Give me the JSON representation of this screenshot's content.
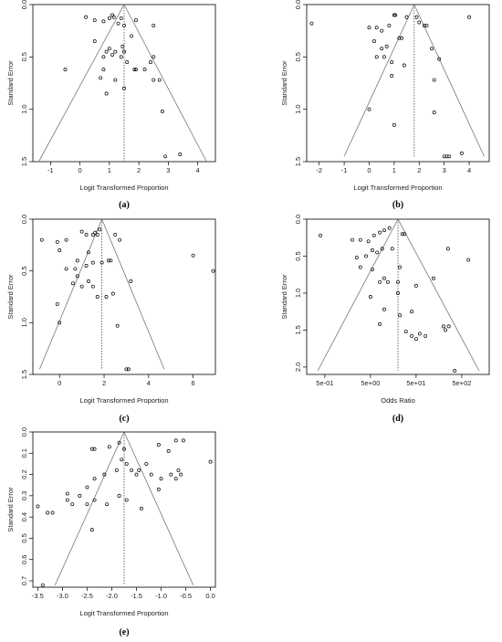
{
  "figure": {
    "panels": [
      {
        "name": "a",
        "label": "(a)"
      },
      {
        "name": "b",
        "label": "(b)"
      },
      {
        "name": "c",
        "label": "(c)"
      },
      {
        "name": "d",
        "label": "(d)"
      },
      {
        "name": "e",
        "label": "(e)"
      }
    ],
    "colors": {
      "points": "#000000",
      "funnel": "#777777",
      "frame": "#000000",
      "background": "#ffffff"
    }
  },
  "chart_data": [
    {
      "type": "scatter",
      "panel": "(a)",
      "xlabel": "Logit Transformed Proportion",
      "ylabel": "Standard Error",
      "xlim": [
        -1.6,
        4.6
      ],
      "ylim": [
        1.5,
        0.0
      ],
      "y_reversed": true,
      "xticks": [
        -1,
        0,
        1,
        2,
        3,
        4
      ],
      "xtick_labels": [
        "-1",
        "0",
        "1",
        "2",
        "3",
        "4"
      ],
      "yticks": [
        0.0,
        0.5,
        1.0,
        1.5
      ],
      "ytick_labels": [
        "0.0",
        "0.5",
        "1.0",
        "1.5"
      ],
      "pooled_estimate": 1.5,
      "funnel": {
        "apex_se": 0.0,
        "base_se": 1.5,
        "left": -1.4,
        "right": 4.3
      },
      "points": [
        [
          0.2,
          0.12
        ],
        [
          0.5,
          0.15
        ],
        [
          0.8,
          0.16
        ],
        [
          1.0,
          0.13
        ],
        [
          1.1,
          0.1
        ],
        [
          1.15,
          0.12
        ],
        [
          1.3,
          0.18
        ],
        [
          1.4,
          0.13
        ],
        [
          1.5,
          0.2
        ],
        [
          1.9,
          0.15
        ],
        [
          2.5,
          0.2
        ],
        [
          0.5,
          0.35
        ],
        [
          1.45,
          0.4
        ],
        [
          1.5,
          0.45
        ],
        [
          1.0,
          0.42
        ],
        [
          0.9,
          0.45
        ],
        [
          1.2,
          0.45
        ],
        [
          0.8,
          0.5
        ],
        [
          1.1,
          0.48
        ],
        [
          1.4,
          0.5
        ],
        [
          1.6,
          0.55
        ],
        [
          1.75,
          0.3
        ],
        [
          1.85,
          0.62
        ],
        [
          1.9,
          0.62
        ],
        [
          2.2,
          0.62
        ],
        [
          2.4,
          0.55
        ],
        [
          2.5,
          0.5
        ],
        [
          -0.5,
          0.62
        ],
        [
          0.8,
          0.62
        ],
        [
          0.7,
          0.7
        ],
        [
          1.2,
          0.72
        ],
        [
          2.5,
          0.72
        ],
        [
          2.7,
          0.72
        ],
        [
          0.9,
          0.85
        ],
        [
          1.5,
          0.8
        ],
        [
          2.8,
          1.02
        ],
        [
          2.9,
          1.45
        ],
        [
          3.4,
          1.43
        ]
      ]
    },
    {
      "type": "scatter",
      "panel": "(b)",
      "xlabel": "Logit Transformed Proportion",
      "ylabel": "Standard Error",
      "xlim": [
        -2.5,
        4.8
      ],
      "ylim": [
        1.5,
        0.0
      ],
      "y_reversed": true,
      "xticks": [
        -2,
        -1,
        0,
        1,
        2,
        3,
        4
      ],
      "xtick_labels": [
        "-2",
        "-1",
        "0",
        "1",
        "2",
        "3",
        "4"
      ],
      "yticks": [
        0.0,
        0.5,
        1.0,
        1.5
      ],
      "ytick_labels": [
        "0.0",
        "0.5",
        "1.0",
        "1.5"
      ],
      "pooled_estimate": 1.8,
      "funnel": {
        "apex_se": 0.0,
        "base_se": 1.45,
        "left": -1.0,
        "right": 4.6
      },
      "points": [
        [
          -2.3,
          0.18
        ],
        [
          0.0,
          0.22
        ],
        [
          0.3,
          0.22
        ],
        [
          0.5,
          0.25
        ],
        [
          0.8,
          0.2
        ],
        [
          1.0,
          0.1
        ],
        [
          1.05,
          0.1
        ],
        [
          1.5,
          0.12
        ],
        [
          1.9,
          0.12
        ],
        [
          2.0,
          0.17
        ],
        [
          2.3,
          0.2
        ],
        [
          2.2,
          0.2
        ],
        [
          4.0,
          0.12
        ],
        [
          0.2,
          0.35
        ],
        [
          0.5,
          0.42
        ],
        [
          0.7,
          0.4
        ],
        [
          1.2,
          0.32
        ],
        [
          1.3,
          0.32
        ],
        [
          0.3,
          0.5
        ],
        [
          0.6,
          0.5
        ],
        [
          0.9,
          0.55
        ],
        [
          1.4,
          0.58
        ],
        [
          2.5,
          0.42
        ],
        [
          2.8,
          0.52
        ],
        [
          0.9,
          0.68
        ],
        [
          2.6,
          0.72
        ],
        [
          0.0,
          1.0
        ],
        [
          2.6,
          1.03
        ],
        [
          1.0,
          1.15
        ],
        [
          3.0,
          1.45
        ],
        [
          3.1,
          1.45
        ],
        [
          3.2,
          1.45
        ],
        [
          3.7,
          1.42
        ]
      ]
    },
    {
      "type": "scatter",
      "panel": "(c)",
      "xlabel": "Logit Transformed Proportion",
      "ylabel": "Standard Error",
      "xlim": [
        -1.2,
        7.0
      ],
      "ylim": [
        1.5,
        0.0
      ],
      "y_reversed": true,
      "xticks": [
        0,
        2,
        4,
        6
      ],
      "xtick_labels": [
        "0",
        "2",
        "4",
        "6"
      ],
      "yticks": [
        0.0,
        0.5,
        1.0,
        1.5
      ],
      "ytick_labels": [
        "0.0",
        "0.5",
        "1.0",
        "1.5"
      ],
      "pooled_estimate": 1.9,
      "funnel": {
        "apex_se": 0.0,
        "base_se": 1.45,
        "left": -0.9,
        "right": 4.7
      },
      "points": [
        [
          -0.8,
          0.2
        ],
        [
          -0.1,
          0.22
        ],
        [
          0.3,
          0.2
        ],
        [
          1.0,
          0.12
        ],
        [
          1.2,
          0.15
        ],
        [
          1.5,
          0.15
        ],
        [
          1.6,
          0.13
        ],
        [
          1.7,
          0.15
        ],
        [
          1.8,
          0.1
        ],
        [
          2.5,
          0.15
        ],
        [
          2.7,
          0.2
        ],
        [
          0.0,
          0.3
        ],
        [
          1.3,
          0.32
        ],
        [
          0.8,
          0.4
        ],
        [
          0.3,
          0.48
        ],
        [
          0.7,
          0.48
        ],
        [
          1.2,
          0.45
        ],
        [
          1.5,
          0.42
        ],
        [
          1.9,
          0.42
        ],
        [
          2.2,
          0.4
        ],
        [
          2.3,
          0.4
        ],
        [
          6.0,
          0.35
        ],
        [
          6.9,
          0.5
        ],
        [
          0.8,
          0.55
        ],
        [
          1.3,
          0.6
        ],
        [
          0.6,
          0.62
        ],
        [
          1.0,
          0.65
        ],
        [
          1.5,
          0.65
        ],
        [
          3.2,
          0.6
        ],
        [
          1.7,
          0.75
        ],
        [
          2.1,
          0.75
        ],
        [
          2.4,
          0.72
        ],
        [
          -0.1,
          0.82
        ],
        [
          0.0,
          1.0
        ],
        [
          2.6,
          1.03
        ],
        [
          3.0,
          1.45
        ],
        [
          3.1,
          1.45
        ]
      ]
    },
    {
      "type": "scatter",
      "panel": "(d)",
      "xlabel": "Odds Ratio",
      "ylabel": "Standard Error",
      "x_scale": "log",
      "xlim": [
        0.2,
        2000
      ],
      "ylim": [
        2.1,
        0.0
      ],
      "y_reversed": true,
      "xticks": [
        0.5,
        5,
        50,
        500
      ],
      "xtick_labels": [
        "5e-01",
        "5e+00",
        "5e+01",
        "5e+02"
      ],
      "yticks": [
        0.0,
        0.5,
        1.0,
        1.5,
        2.0
      ],
      "ytick_labels": [
        "0.0",
        "0.5",
        "1.0",
        "1.5",
        "2.0"
      ],
      "pooled_estimate": 20,
      "funnel": {
        "apex_se": 0.0,
        "base_se": 2.05,
        "left": 0.35,
        "right": 1200
      },
      "points": [
        [
          0.4,
          0.22
        ],
        [
          2.0,
          0.28
        ],
        [
          3.0,
          0.28
        ],
        [
          4.5,
          0.3
        ],
        [
          6.0,
          0.22
        ],
        [
          8.0,
          0.18
        ],
        [
          10.0,
          0.15
        ],
        [
          13.0,
          0.12
        ],
        [
          25.0,
          0.2
        ],
        [
          28.0,
          0.2
        ],
        [
          2.5,
          0.52
        ],
        [
          4.0,
          0.5
        ],
        [
          5.5,
          0.42
        ],
        [
          7.0,
          0.45
        ],
        [
          9.0,
          0.4
        ],
        [
          15.0,
          0.4
        ],
        [
          250.0,
          0.4
        ],
        [
          700.0,
          0.55
        ],
        [
          3.0,
          0.65
        ],
        [
          5.5,
          0.68
        ],
        [
          22.0,
          0.65
        ],
        [
          8.0,
          0.85
        ],
        [
          10.0,
          0.8
        ],
        [
          12.0,
          0.85
        ],
        [
          20.0,
          0.85
        ],
        [
          50.0,
          0.9
        ],
        [
          120.0,
          0.8
        ],
        [
          20.0,
          1.0
        ],
        [
          5.0,
          1.05
        ],
        [
          10.0,
          1.22
        ],
        [
          40.0,
          1.25
        ],
        [
          22.0,
          1.3
        ],
        [
          8.0,
          1.42
        ],
        [
          30.0,
          1.52
        ],
        [
          40.0,
          1.58
        ],
        [
          50.0,
          1.62
        ],
        [
          60.0,
          1.55
        ],
        [
          80.0,
          1.58
        ],
        [
          200.0,
          1.45
        ],
        [
          220.0,
          1.5
        ],
        [
          260.0,
          1.45
        ],
        [
          350.0,
          2.05
        ]
      ]
    },
    {
      "type": "scatter",
      "panel": "(e)",
      "xlabel": "Logit Transformed Proportion",
      "ylabel": "Standard Error",
      "xlim": [
        -3.6,
        0.1
      ],
      "ylim": [
        0.73,
        0.0
      ],
      "y_reversed": true,
      "xticks": [
        -3.5,
        -3.0,
        -2.5,
        -2.0,
        -1.5,
        -1.0,
        -0.5,
        0.0
      ],
      "xtick_labels": [
        "-3.5",
        "-3.0",
        "-2.5",
        "-2.0",
        "-1.5",
        "-1.0",
        "-0.5",
        "0.0"
      ],
      "yticks": [
        0.0,
        0.1,
        0.2,
        0.3,
        0.4,
        0.5,
        0.6,
        0.7
      ],
      "ytick_labels": [
        "0.0",
        "0.1",
        "0.2",
        "0.3",
        "0.4",
        "0.5",
        "0.6",
        "0.7"
      ],
      "pooled_estimate": -1.75,
      "funnel": {
        "apex_se": 0.0,
        "base_se": 0.72,
        "left": -3.15,
        "right": -0.35
      },
      "points": [
        [
          -2.4,
          0.08
        ],
        [
          -2.35,
          0.08
        ],
        [
          -2.05,
          0.07
        ],
        [
          -1.85,
          0.05
        ],
        [
          -1.75,
          0.08
        ],
        [
          -0.7,
          0.04
        ],
        [
          -0.55,
          0.04
        ],
        [
          -1.05,
          0.06
        ],
        [
          -0.85,
          0.09
        ],
        [
          -1.8,
          0.13
        ],
        [
          -1.7,
          0.15
        ],
        [
          -1.6,
          0.18
        ],
        [
          -1.5,
          0.2
        ],
        [
          -1.45,
          0.18
        ],
        [
          -1.3,
          0.15
        ],
        [
          -1.2,
          0.2
        ],
        [
          -1.0,
          0.22
        ],
        [
          -0.8,
          0.2
        ],
        [
          -0.65,
          0.18
        ],
        [
          -0.6,
          0.2
        ],
        [
          -0.7,
          0.22
        ],
        [
          0.0,
          0.14
        ],
        [
          -1.9,
          0.18
        ],
        [
          -2.15,
          0.2
        ],
        [
          -2.35,
          0.22
        ],
        [
          -2.5,
          0.26
        ],
        [
          -2.9,
          0.29
        ],
        [
          -2.65,
          0.3
        ],
        [
          -2.9,
          0.32
        ],
        [
          -2.8,
          0.34
        ],
        [
          -2.5,
          0.34
        ],
        [
          -2.35,
          0.32
        ],
        [
          -2.1,
          0.34
        ],
        [
          -1.7,
          0.32
        ],
        [
          -1.85,
          0.3
        ],
        [
          -1.4,
          0.36
        ],
        [
          -1.05,
          0.27
        ],
        [
          -3.5,
          0.35
        ],
        [
          -3.3,
          0.38
        ],
        [
          -3.2,
          0.38
        ],
        [
          -2.4,
          0.46
        ],
        [
          -3.4,
          0.72
        ]
      ]
    }
  ]
}
